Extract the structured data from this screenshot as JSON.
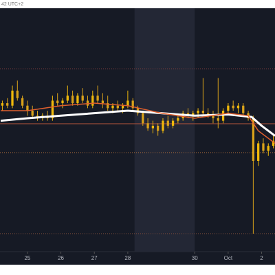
{
  "header": {
    "text": "42 UTC+2"
  },
  "chart_data": {
    "type": "candlestick",
    "xlim": [
      24.18,
      32.4
    ],
    "ylim": [
      0,
      100
    ],
    "xticks": [
      25,
      26,
      27,
      28,
      30,
      {
        "value": 31,
        "label": "Oct"
      },
      {
        "value": 32,
        "label": "2"
      }
    ],
    "highlight": [
      28.2,
      30.0
    ],
    "up_color": "#f0b90b",
    "down_color": "#d9a21a",
    "candles": [
      [
        24.25,
        62,
        64,
        60,
        63
      ],
      [
        24.4,
        63,
        65,
        61,
        62
      ],
      [
        24.55,
        62,
        70,
        61,
        68
      ],
      [
        24.7,
        68,
        72,
        64,
        65
      ],
      [
        24.85,
        65,
        66,
        61,
        62
      ],
      [
        25.0,
        62,
        64,
        58,
        60
      ],
      [
        25.15,
        60,
        62,
        57,
        58
      ],
      [
        25.3,
        58,
        60,
        56,
        57
      ],
      [
        25.45,
        57,
        59,
        56,
        58
      ],
      [
        25.6,
        58,
        60,
        56,
        57
      ],
      [
        25.75,
        57,
        66,
        56,
        64
      ],
      [
        25.9,
        64,
        67,
        62,
        63
      ],
      [
        26.05,
        63,
        65,
        61,
        64
      ],
      [
        26.2,
        64,
        70,
        63,
        66
      ],
      [
        26.35,
        66,
        68,
        62,
        63
      ],
      [
        26.5,
        63,
        67,
        62,
        66
      ],
      [
        26.65,
        66,
        69,
        63,
        64
      ],
      [
        26.8,
        64,
        66,
        61,
        62
      ],
      [
        26.95,
        62,
        68,
        61,
        66
      ],
      [
        27.1,
        66,
        70,
        63,
        64
      ],
      [
        27.25,
        64,
        67,
        61,
        63
      ],
      [
        27.4,
        63,
        66,
        60,
        61
      ],
      [
        27.55,
        61,
        63,
        59,
        62
      ],
      [
        27.7,
        62,
        64,
        60,
        61
      ],
      [
        27.85,
        61,
        63,
        59,
        62
      ],
      [
        28.0,
        62,
        68,
        61,
        64
      ],
      [
        28.15,
        64,
        65,
        60,
        61
      ],
      [
        28.3,
        61,
        62,
        58,
        59
      ],
      [
        28.45,
        59,
        60,
        54,
        55
      ],
      [
        28.6,
        55,
        57,
        52,
        53
      ],
      [
        28.75,
        53,
        56,
        51,
        54
      ],
      [
        28.9,
        54,
        55,
        50,
        52
      ],
      [
        29.05,
        52,
        57,
        51,
        56
      ],
      [
        29.2,
        56,
        58,
        53,
        54
      ],
      [
        29.35,
        54,
        57,
        53,
        56
      ],
      [
        29.5,
        56,
        58,
        55,
        57
      ],
      [
        29.65,
        57,
        60,
        56,
        59
      ],
      [
        29.8,
        59,
        61,
        57,
        58
      ],
      [
        29.95,
        58,
        60,
        56,
        59
      ],
      [
        30.1,
        59,
        61,
        57,
        60
      ],
      [
        30.25,
        60,
        73,
        58,
        59
      ],
      [
        30.4,
        59,
        61,
        57,
        58
      ],
      [
        30.55,
        58,
        60,
        55,
        57
      ],
      [
        30.7,
        57,
        73,
        53,
        56
      ],
      [
        30.85,
        56,
        61,
        55,
        60
      ],
      [
        31.0,
        60,
        63,
        59,
        62
      ],
      [
        31.15,
        62,
        64,
        60,
        61
      ],
      [
        31.3,
        61,
        63,
        59,
        62
      ],
      [
        31.45,
        62,
        63,
        58,
        59
      ],
      [
        31.6,
        59,
        60,
        56,
        57
      ],
      [
        31.75,
        57,
        58,
        11,
        40
      ],
      [
        31.9,
        40,
        48,
        38,
        47
      ],
      [
        32.05,
        47,
        49,
        43,
        44
      ],
      [
        32.2,
        44,
        47,
        42,
        46
      ],
      [
        32.35,
        46,
        50,
        45,
        48
      ]
    ],
    "lines": [
      {
        "color": "#ffffff",
        "width": 3,
        "x": [
          24.2,
          25,
          26,
          27,
          28,
          29,
          30,
          31,
          31.7,
          32,
          32.4
        ],
        "values": [
          56,
          57,
          58,
          59,
          60,
          59,
          58,
          58.5,
          57.5,
          54,
          50
        ]
      },
      {
        "color": "#e0602e",
        "width": 1.5,
        "x": [
          24.2,
          25,
          26,
          27,
          28,
          29,
          30,
          31,
          31.6,
          31.9,
          32.4
        ],
        "values": [
          60,
          60,
          62,
          63,
          62,
          59,
          57,
          59,
          58,
          52,
          47
        ]
      }
    ],
    "levels": [
      {
        "value": 76.7,
        "color": "#7a3b3b",
        "dash": true
      },
      {
        "value": 54.8,
        "color": "#b8563a",
        "dash": false
      },
      {
        "value": 43.3,
        "color": "#b8733a",
        "dash": true
      },
      {
        "value": 11,
        "color": "#7a4a3a",
        "dash": true
      }
    ]
  }
}
